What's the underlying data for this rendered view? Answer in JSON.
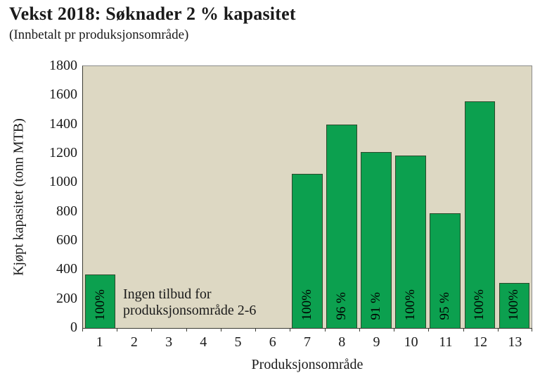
{
  "chart_data": {
    "type": "bar",
    "title": "Vekst 2018: Søknader 2 % kapasitet",
    "subtitle": "(Innbetalt pr produksjonsområde)",
    "xlabel": "Produksjonsområde",
    "ylabel": "Kjøpt kapasitet (tonn MTB)",
    "categories": [
      "1",
      "2",
      "3",
      "4",
      "5",
      "6",
      "7",
      "8",
      "9",
      "10",
      "11",
      "12",
      "13"
    ],
    "values": [
      370,
      null,
      null,
      null,
      null,
      null,
      1060,
      1400,
      1210,
      1185,
      790,
      1560,
      310
    ],
    "bar_labels": [
      "100%",
      null,
      null,
      null,
      null,
      null,
      "100%",
      "96 %",
      "91 %",
      "100%",
      "95 %",
      "100%",
      "100%"
    ],
    "annotation_lines": [
      "Ingen tilbud for",
      "produksjonsområde 2-6"
    ],
    "ylim": [
      0,
      1800
    ],
    "yticks": [
      0,
      200,
      400,
      600,
      800,
      1000,
      1200,
      1400,
      1600,
      1800
    ],
    "grid": false,
    "legend": false,
    "colors": {
      "bar_fill": "#0ca04f",
      "bar_border": "#2c4a2c",
      "plot_bg": "#ddd8c3",
      "plot_border": "#8c8c8c",
      "axis_line": "#3a3a32",
      "text": "#1a1a1a"
    }
  }
}
